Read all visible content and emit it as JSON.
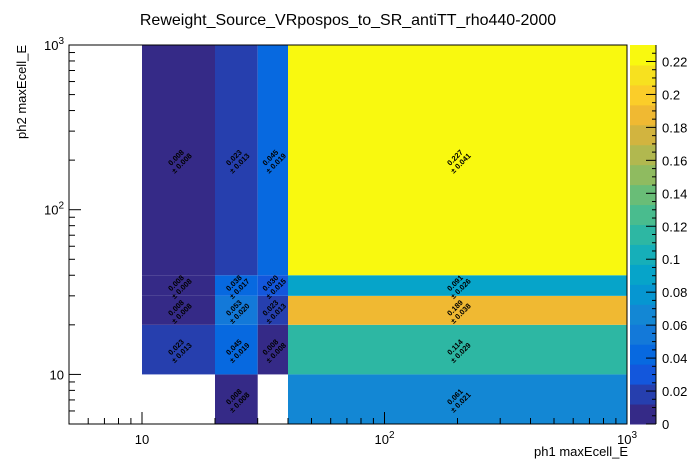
{
  "chart_data": {
    "type": "heatmap",
    "title": "Reweight_Source_VRpospos_to_SR_antiTT_rho440-2000",
    "xlabel": "ph1 maxEcell_E",
    "ylabel": "ph2 maxEcell_E",
    "xscale": "log",
    "yscale": "log",
    "xlim": [
      5,
      1000
    ],
    "ylim": [
      5,
      1000
    ],
    "x_tick_labels": [
      "10",
      "10^2",
      "10^3"
    ],
    "y_tick_labels": [
      "10",
      "10^2",
      "10^3"
    ],
    "colorbar": {
      "range": [
        0,
        0.23
      ],
      "tick_values": [
        0,
        0.02,
        0.04,
        0.06,
        0.08,
        0.1,
        0.12,
        0.14,
        0.16,
        0.18,
        0.2,
        0.22
      ],
      "tick_labels": [
        "0",
        "0.02",
        "0.04",
        "0.06",
        "0.08",
        "0.1",
        "0.12",
        "0.14",
        "0.16",
        "0.18",
        "0.2",
        "0.22"
      ],
      "palette": [
        "#352a87",
        "#263fae",
        "#1357dc",
        "#0769e0",
        "#1379d9",
        "#1387d4",
        "#0696d1",
        "#06a4c9",
        "#16afb9",
        "#2db7a3",
        "#49bc8e",
        "#69bd77",
        "#8fbb60",
        "#b1b84f",
        "#d2b43f",
        "#f0b932",
        "#fbcd29",
        "#f7e11f",
        "#f9f90f"
      ]
    },
    "x_edges": [
      5,
      10,
      20,
      30,
      40,
      1000
    ],
    "y_edges": [
      5,
      10,
      20,
      30,
      40,
      1000
    ],
    "cells": [
      {
        "x": [
          10,
          20
        ],
        "y": [
          10,
          20
        ],
        "value": 0.023,
        "error": 0.013,
        "label": "0.023",
        "error_label": "± 0.013"
      },
      {
        "x": [
          10,
          20
        ],
        "y": [
          20,
          30
        ],
        "value": 0.008,
        "error": 0.008,
        "label": "0.008",
        "error_label": "± 0.008"
      },
      {
        "x": [
          10,
          20
        ],
        "y": [
          30,
          40
        ],
        "value": 0.008,
        "error": 0.008,
        "label": "0.008",
        "error_label": "± 0.008"
      },
      {
        "x": [
          10,
          20
        ],
        "y": [
          40,
          1000
        ],
        "value": 0.008,
        "error": 0.008,
        "label": "0.008",
        "error_label": "± 0.008"
      },
      {
        "x": [
          20,
          30
        ],
        "y": [
          5,
          10
        ],
        "value": 0.008,
        "error": 0.008,
        "label": "0.008",
        "error_label": "± 0.008"
      },
      {
        "x": [
          20,
          30
        ],
        "y": [
          10,
          20
        ],
        "value": 0.045,
        "error": 0.019,
        "label": "0.045",
        "error_label": "± 0.019"
      },
      {
        "x": [
          20,
          30
        ],
        "y": [
          20,
          30
        ],
        "value": 0.053,
        "error": 0.02,
        "label": "0.053",
        "error_label": "± 0.020"
      },
      {
        "x": [
          20,
          30
        ],
        "y": [
          30,
          40
        ],
        "value": 0.038,
        "error": 0.017,
        "label": "0.038",
        "error_label": "± 0.017"
      },
      {
        "x": [
          20,
          30
        ],
        "y": [
          40,
          1000
        ],
        "value": 0.023,
        "error": 0.013,
        "label": "0.023",
        "error_label": "± 0.013"
      },
      {
        "x": [
          30,
          40
        ],
        "y": [
          10,
          20
        ],
        "value": 0.008,
        "error": 0.008,
        "label": "0.008",
        "error_label": "± 0.008"
      },
      {
        "x": [
          30,
          40
        ],
        "y": [
          20,
          30
        ],
        "value": 0.023,
        "error": 0.013,
        "label": "0.023",
        "error_label": "± 0.013"
      },
      {
        "x": [
          30,
          40
        ],
        "y": [
          30,
          40
        ],
        "value": 0.03,
        "error": 0.015,
        "label": "0.030",
        "error_label": "± 0.015"
      },
      {
        "x": [
          30,
          40
        ],
        "y": [
          40,
          1000
        ],
        "value": 0.045,
        "error": 0.019,
        "label": "0.045",
        "error_label": "± 0.019"
      },
      {
        "x": [
          40,
          1000
        ],
        "y": [
          5,
          10
        ],
        "value": 0.061,
        "error": 0.021,
        "label": "0.061",
        "error_label": "± 0.021"
      },
      {
        "x": [
          40,
          1000
        ],
        "y": [
          10,
          20
        ],
        "value": 0.114,
        "error": 0.029,
        "label": "0.114",
        "error_label": "± 0.029"
      },
      {
        "x": [
          40,
          1000
        ],
        "y": [
          20,
          30
        ],
        "value": 0.189,
        "error": 0.038,
        "label": "0.189",
        "error_label": "± 0.038"
      },
      {
        "x": [
          40,
          1000
        ],
        "y": [
          30,
          40
        ],
        "value": 0.091,
        "error": 0.026,
        "label": "0.091",
        "error_label": "± 0.026"
      },
      {
        "x": [
          40,
          1000
        ],
        "y": [
          40,
          1000
        ],
        "value": 0.227,
        "error": 0.041,
        "label": "0.227",
        "error_label": "± 0.041"
      }
    ]
  }
}
